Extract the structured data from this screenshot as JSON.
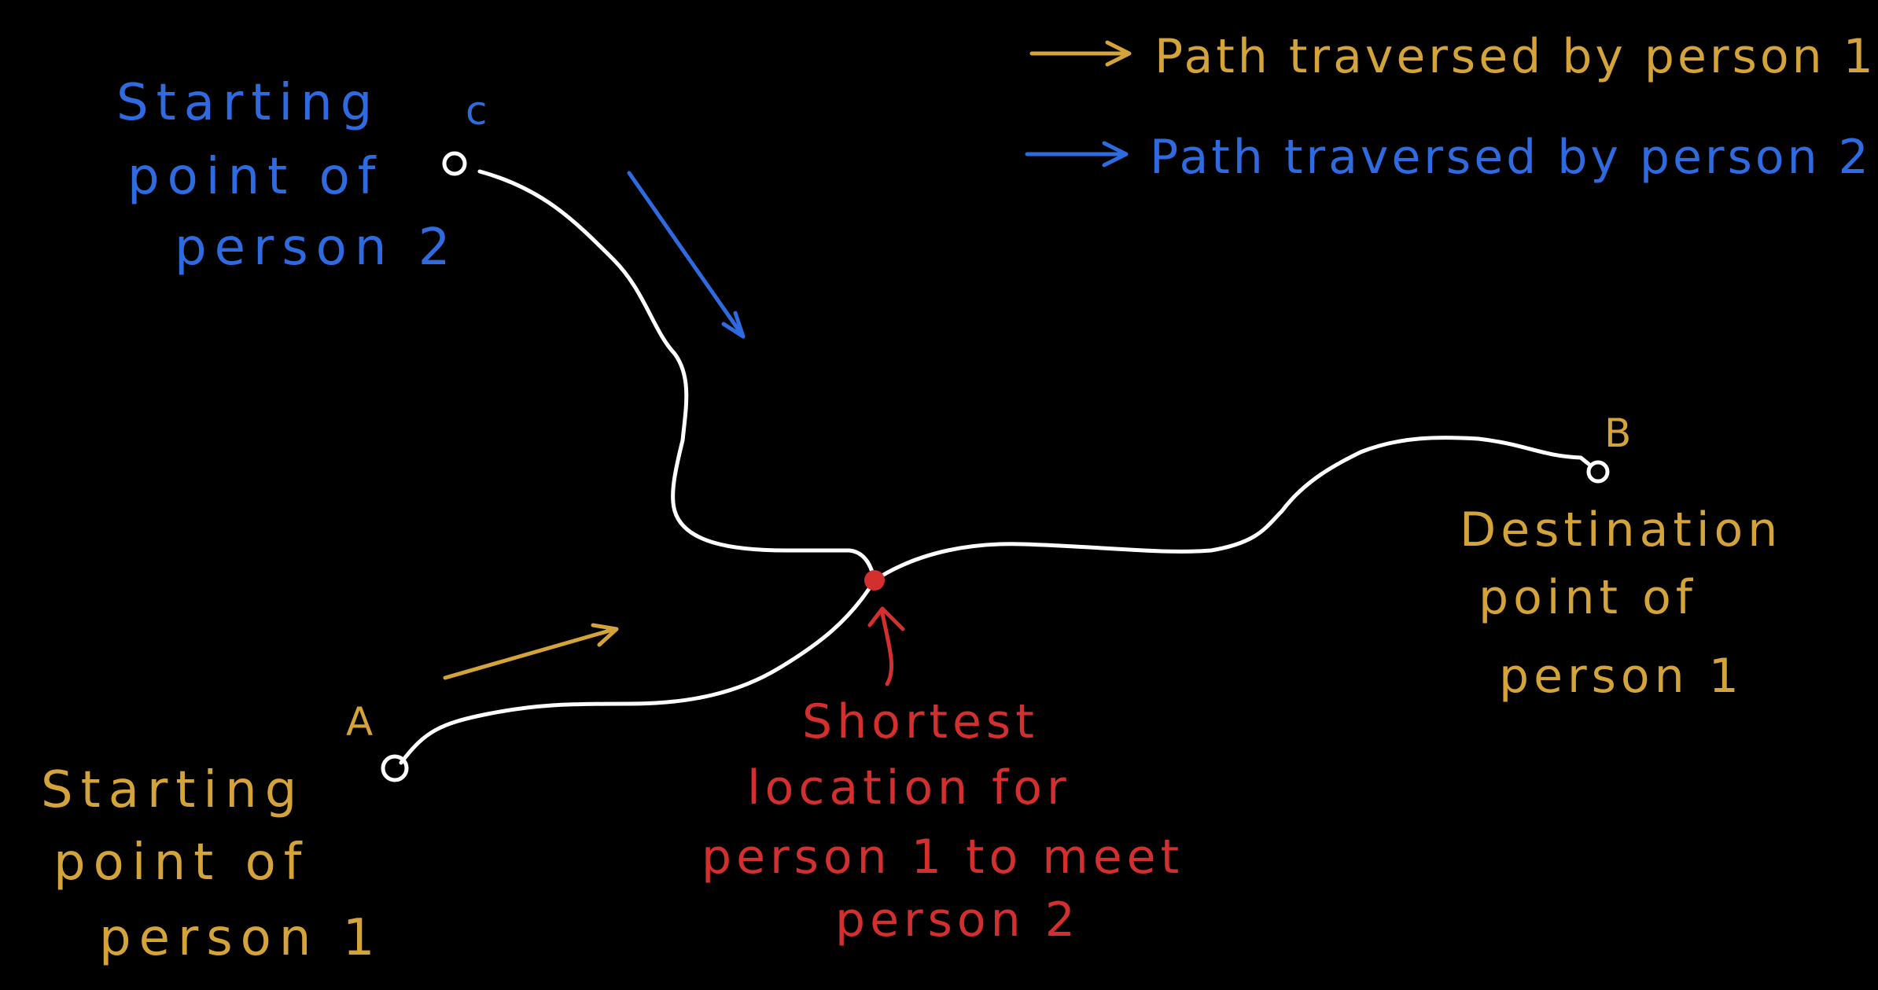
{
  "colors": {
    "background": "#000000",
    "path": "#ffffff",
    "person1": "#d4a43a",
    "person2": "#2f6be0",
    "meeting": "#d32f2f"
  },
  "legend": {
    "person1": "Path traversed by person 1",
    "person2": "Path traversed by person 2"
  },
  "nodes": {
    "a": {
      "letter": "A",
      "label_lines": [
        "Starting",
        "point of",
        "person 1"
      ]
    },
    "b": {
      "letter": "B",
      "label_lines": [
        "Destination",
        "point of",
        "person 1"
      ]
    },
    "c": {
      "letter": "c",
      "label_lines": [
        "Starting",
        "point of",
        "person 2"
      ]
    }
  },
  "meeting_point": {
    "label_lines": [
      "Shortest",
      "location for",
      "person 1 to meet",
      "person 2"
    ]
  }
}
